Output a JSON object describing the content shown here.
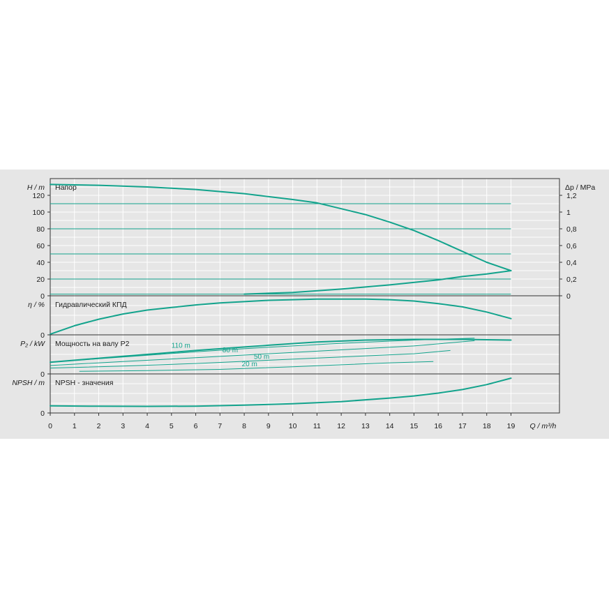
{
  "chart_data": {
    "type": "line",
    "x_axis": {
      "label": "Q / m³/h",
      "range": [
        0,
        21
      ],
      "ticks": [
        0,
        1,
        2,
        3,
        4,
        5,
        6,
        7,
        8,
        9,
        10,
        11,
        12,
        13,
        14,
        15,
        16,
        17,
        18,
        19
      ]
    },
    "panels": [
      {
        "key": "head",
        "ylabel": "H / m",
        "title": "Напор",
        "ylim": [
          0,
          140
        ],
        "yticks": [
          0,
          20,
          40,
          60,
          80,
          100,
          120
        ],
        "right_axis": {
          "label": "Δp / MPa",
          "ticks": [
            "0",
            "0,2",
            "0,4",
            "0,6",
            "0,8",
            "1",
            "1,2"
          ]
        },
        "series": [
          {
            "values": [
              [
                0,
                133
              ],
              [
                2,
                132
              ],
              [
                4,
                130
              ],
              [
                6,
                127
              ],
              [
                8,
                122
              ],
              [
                10,
                115
              ],
              [
                11,
                111
              ],
              [
                12,
                104
              ],
              [
                13,
                97
              ],
              [
                14,
                88
              ],
              [
                15,
                78
              ],
              [
                16,
                66
              ],
              [
                17,
                53
              ],
              [
                18,
                40
              ],
              [
                19,
                30
              ]
            ]
          },
          {
            "values": [
              [
                8,
                2
              ],
              [
                10,
                4
              ],
              [
                12,
                8
              ],
              [
                14,
                13
              ],
              [
                16,
                19
              ],
              [
                17,
                23
              ],
              [
                18,
                26
              ],
              [
                19,
                30
              ]
            ]
          }
        ],
        "hlines": [
          110,
          80,
          50,
          20,
          2
        ]
      },
      {
        "key": "efficiency",
        "ylabel": "η / %",
        "title": "Гидравлический КПД",
        "ylim": [
          0,
          60
        ],
        "yticks": [
          0
        ],
        "series": [
          {
            "values": [
              [
                0,
                1
              ],
              [
                1,
                14
              ],
              [
                2,
                24
              ],
              [
                3,
                32
              ],
              [
                4,
                38
              ],
              [
                5,
                42
              ],
              [
                6,
                46
              ],
              [
                7,
                49
              ],
              [
                8,
                51
              ],
              [
                9,
                53
              ],
              [
                10,
                54
              ],
              [
                11,
                55
              ],
              [
                12,
                55
              ],
              [
                13,
                55
              ],
              [
                14,
                54
              ],
              [
                15,
                52
              ],
              [
                16,
                48
              ],
              [
                17,
                43
              ],
              [
                18,
                35
              ],
              [
                19,
                25
              ]
            ]
          }
        ]
      },
      {
        "key": "power",
        "ylabel": "P₂ / kW",
        "title": "Мощность на валу P2",
        "ylim": [
          0,
          60
        ],
        "yticks": [
          0
        ],
        "series": [
          {
            "values": [
              [
                0,
                18
              ],
              [
                3,
                27
              ],
              [
                6,
                36
              ],
              [
                9,
                44
              ],
              [
                11,
                49
              ],
              [
                13,
                52
              ],
              [
                15,
                53
              ],
              [
                17,
                53
              ],
              [
                19,
                52
              ]
            ]
          },
          {
            "name": "110 m",
            "values": [
              [
                0,
                18
              ],
              [
                3,
                26
              ],
              [
                6,
                34
              ],
              [
                9,
                41
              ],
              [
                12,
                47
              ],
              [
                15,
                52
              ],
              [
                17.5,
                55
              ]
            ]
          },
          {
            "name": "80 m",
            "values": [
              [
                0,
                13
              ],
              [
                3,
                19
              ],
              [
                6,
                25
              ],
              [
                9,
                31
              ],
              [
                12,
                37
              ],
              [
                15,
                43
              ],
              [
                17.5,
                51
              ]
            ]
          },
          {
            "name": "50 m",
            "values": [
              [
                0,
                9
              ],
              [
                3,
                12
              ],
              [
                6,
                16
              ],
              [
                9,
                21
              ],
              [
                12,
                26
              ],
              [
                15,
                31
              ],
              [
                16.5,
                36
              ]
            ]
          },
          {
            "name": "20 m",
            "values": [
              [
                1.2,
                4
              ],
              [
                4,
                5
              ],
              [
                7,
                7
              ],
              [
                10,
                11
              ],
              [
                12,
                14
              ],
              [
                14,
                17
              ],
              [
                15.8,
                19
              ]
            ]
          }
        ],
        "series_labels": [
          {
            "text": "110 m",
            "x": 5,
            "y": 40
          },
          {
            "text": "80 m",
            "x": 7.1,
            "y": 33
          },
          {
            "text": "50 m",
            "x": 8.4,
            "y": 23
          },
          {
            "text": "20 m",
            "x": 7.9,
            "y": 12
          }
        ]
      },
      {
        "key": "npsh",
        "ylabel": "NPSH / m",
        "title": "NPSH - значения",
        "ylim": [
          0,
          55
        ],
        "yticks": [
          0
        ],
        "series": [
          {
            "values": [
              [
                0,
                10
              ],
              [
                2,
                9.5
              ],
              [
                4,
                9.3
              ],
              [
                6,
                9.6
              ],
              [
                8,
                11
              ],
              [
                10,
                13
              ],
              [
                12,
                16
              ],
              [
                14,
                21
              ],
              [
                15,
                24
              ],
              [
                16,
                28
              ],
              [
                17,
                33
              ],
              [
                18,
                40
              ],
              [
                19,
                49
              ]
            ]
          }
        ]
      }
    ],
    "grid": true
  }
}
